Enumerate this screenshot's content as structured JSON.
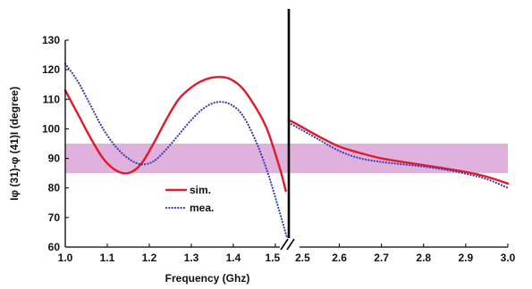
{
  "chart_data": {
    "type": "line",
    "title": "",
    "xlabel": "Frequency (Ghz)",
    "ylabel": "Iφ (31)-φ (41)I (degree)",
    "ylim": [
      60,
      130
    ],
    "yticks": [
      60,
      70,
      80,
      90,
      100,
      110,
      120,
      130
    ],
    "x_broken_axis": true,
    "x_segments": [
      {
        "xlim": [
          1.0,
          1.53
        ],
        "ticks": [
          1.0,
          1.1,
          1.2,
          1.3,
          1.4,
          1.5
        ]
      },
      {
        "xlim": [
          2.48,
          3.0
        ],
        "ticks": [
          2.5,
          2.6,
          2.7,
          2.8,
          2.9,
          3.0
        ]
      }
    ],
    "band": {
      "y": [
        85,
        95
      ],
      "color": "#d9a3d6"
    },
    "legend": {
      "position": "center-left"
    },
    "series": [
      {
        "name": "sim.",
        "color": "#e01a2a",
        "style": "solid",
        "segments": [
          {
            "x": [
              1.0,
              1.03,
              1.06,
              1.09,
              1.12,
              1.15,
              1.18,
              1.21,
              1.24,
              1.27,
              1.3,
              1.33,
              1.36,
              1.39,
              1.42,
              1.45,
              1.48,
              1.51,
              1.525
            ],
            "y": [
              113,
              105,
              97,
              90,
              86,
              85,
              88,
              95,
              103,
              110,
              114,
              116.5,
              117.5,
              117,
              114,
              108,
              100,
              87,
              79
            ]
          },
          {
            "x": [
              2.48,
              2.5,
              2.55,
              2.6,
              2.65,
              2.7,
              2.75,
              2.8,
              2.85,
              2.9,
              2.95,
              3.0
            ],
            "y": [
              103,
              101.5,
              97.5,
              94,
              91.8,
              90,
              88.8,
              87.7,
              86.6,
              85.4,
              83.8,
              81.5
            ]
          }
        ]
      },
      {
        "name": "mea.",
        "color": "#3b3fb5",
        "style": "dotted",
        "segments": [
          {
            "x": [
              1.0,
              1.03,
              1.06,
              1.09,
              1.12,
              1.15,
              1.18,
              1.21,
              1.24,
              1.27,
              1.3,
              1.33,
              1.36,
              1.39,
              1.42,
              1.45,
              1.48,
              1.51,
              1.53
            ],
            "y": [
              122,
              116,
              108,
              100,
              94,
              90,
              88,
              89,
              93,
              98,
              103,
              107,
              109,
              108.5,
              105,
              97,
              86,
              72,
              62
            ]
          },
          {
            "x": [
              2.48,
              2.5,
              2.55,
              2.6,
              2.65,
              2.7,
              2.75,
              2.8,
              2.85,
              2.9,
              2.95,
              3.0
            ],
            "y": [
              102,
              100.5,
              96.5,
              92.5,
              90,
              88.8,
              88,
              87.2,
              86.2,
              84.8,
              83,
              80
            ]
          }
        ]
      }
    ]
  }
}
